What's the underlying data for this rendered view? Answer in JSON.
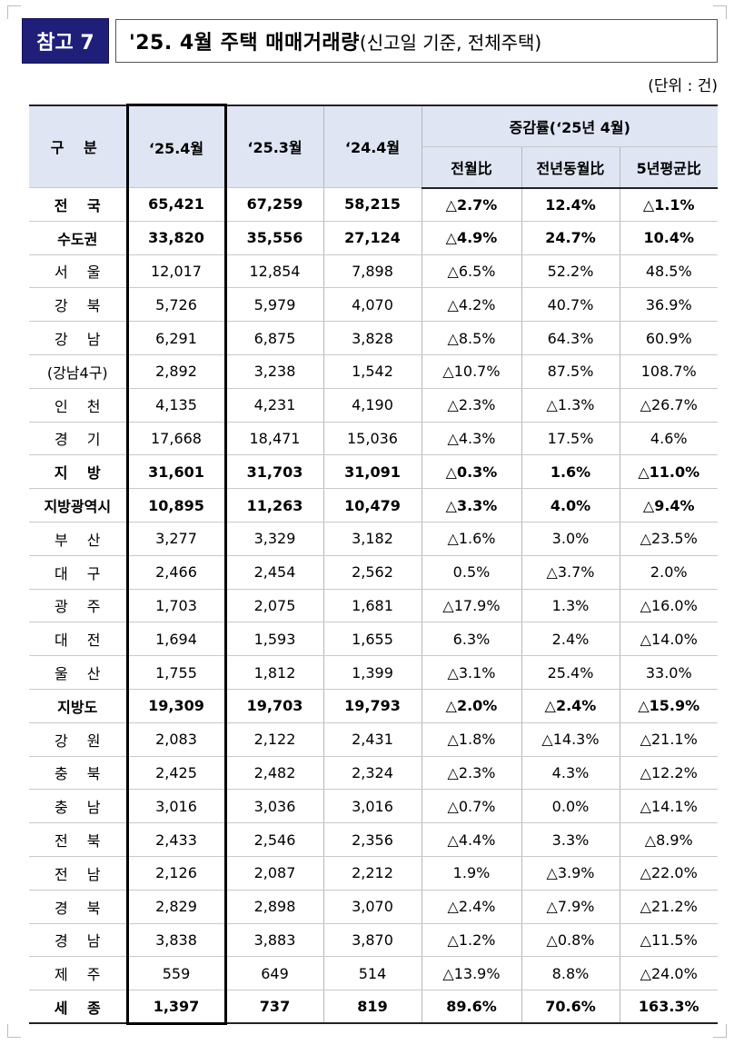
{
  "badge": "참고 7",
  "title": {
    "main": "'25. 4월 주택 매매거래량",
    "sub": "(신고일 기준, 전체주택)"
  },
  "unit": "(단위 : 건)",
  "header": {
    "category": "구 분",
    "col1": "‘25.4월",
    "col2": "‘25.3월",
    "col3": "‘24.4월",
    "change_group": "증감률(‘25년 4월)",
    "mom": "전월比",
    "yoy": "전년동월比",
    "avg5y": "5년평균比"
  },
  "rows": [
    {
      "label": "전 국",
      "v1": "65,421",
      "v2": "67,259",
      "v3": "58,215",
      "mom": "△2.7%",
      "yoy": "12.4%",
      "avg": "△1.1%"
    },
    {
      "label": "수도권",
      "v1": "33,820",
      "v2": "35,556",
      "v3": "27,124",
      "mom": "△4.9%",
      "yoy": "24.7%",
      "avg": "10.4%"
    },
    {
      "label": "서 울",
      "v1": "12,017",
      "v2": "12,854",
      "v3": "7,898",
      "mom": "△6.5%",
      "yoy": "52.2%",
      "avg": "48.5%"
    },
    {
      "label": "강 북",
      "v1": "5,726",
      "v2": "5,979",
      "v3": "4,070",
      "mom": "△4.2%",
      "yoy": "40.7%",
      "avg": "36.9%"
    },
    {
      "label": "강 남",
      "v1": "6,291",
      "v2": "6,875",
      "v3": "3,828",
      "mom": "△8.5%",
      "yoy": "64.3%",
      "avg": "60.9%"
    },
    {
      "label": "(강남4구)",
      "v1": "2,892",
      "v2": "3,238",
      "v3": "1,542",
      "mom": "△10.7%",
      "yoy": "87.5%",
      "avg": "108.7%"
    },
    {
      "label": "인 천",
      "v1": "4,135",
      "v2": "4,231",
      "v3": "4,190",
      "mom": "△2.3%",
      "yoy": "△1.3%",
      "avg": "△26.7%"
    },
    {
      "label": "경 기",
      "v1": "17,668",
      "v2": "18,471",
      "v3": "15,036",
      "mom": "△4.3%",
      "yoy": "17.5%",
      "avg": "4.6%"
    },
    {
      "label": "지 방",
      "v1": "31,601",
      "v2": "31,703",
      "v3": "31,091",
      "mom": "△0.3%",
      "yoy": "1.6%",
      "avg": "△11.0%"
    },
    {
      "label": "지방광역시",
      "v1": "10,895",
      "v2": "11,263",
      "v3": "10,479",
      "mom": "△3.3%",
      "yoy": "4.0%",
      "avg": "△9.4%"
    },
    {
      "label": "부 산",
      "v1": "3,277",
      "v2": "3,329",
      "v3": "3,182",
      "mom": "△1.6%",
      "yoy": "3.0%",
      "avg": "△23.5%"
    },
    {
      "label": "대 구",
      "v1": "2,466",
      "v2": "2,454",
      "v3": "2,562",
      "mom": "0.5%",
      "yoy": "△3.7%",
      "avg": "2.0%"
    },
    {
      "label": "광 주",
      "v1": "1,703",
      "v2": "2,075",
      "v3": "1,681",
      "mom": "△17.9%",
      "yoy": "1.3%",
      "avg": "△16.0%"
    },
    {
      "label": "대 전",
      "v1": "1,694",
      "v2": "1,593",
      "v3": "1,655",
      "mom": "6.3%",
      "yoy": "2.4%",
      "avg": "△14.0%"
    },
    {
      "label": "울 산",
      "v1": "1,755",
      "v2": "1,812",
      "v3": "1,399",
      "mom": "△3.1%",
      "yoy": "25.4%",
      "avg": "33.0%"
    },
    {
      "label": "지방도",
      "v1": "19,309",
      "v2": "19,703",
      "v3": "19,793",
      "mom": "△2.0%",
      "yoy": "△2.4%",
      "avg": "△15.9%"
    },
    {
      "label": "강 원",
      "v1": "2,083",
      "v2": "2,122",
      "v3": "2,431",
      "mom": "△1.8%",
      "yoy": "△14.3%",
      "avg": "△21.1%"
    },
    {
      "label": "충 북",
      "v1": "2,425",
      "v2": "2,482",
      "v3": "2,324",
      "mom": "△2.3%",
      "yoy": "4.3%",
      "avg": "△12.2%"
    },
    {
      "label": "충 남",
      "v1": "3,016",
      "v2": "3,036",
      "v3": "3,016",
      "mom": "△0.7%",
      "yoy": "0.0%",
      "avg": "△14.1%"
    },
    {
      "label": "전 북",
      "v1": "2,433",
      "v2": "2,546",
      "v3": "2,356",
      "mom": "△4.4%",
      "yoy": "3.3%",
      "avg": "△8.9%"
    },
    {
      "label": "전 남",
      "v1": "2,126",
      "v2": "2,087",
      "v3": "2,212",
      "mom": "1.9%",
      "yoy": "△3.9%",
      "avg": "△22.0%"
    },
    {
      "label": "경 북",
      "v1": "2,829",
      "v2": "2,898",
      "v3": "3,070",
      "mom": "△2.4%",
      "yoy": "△7.9%",
      "avg": "△21.2%"
    },
    {
      "label": "경 남",
      "v1": "3,838",
      "v2": "3,883",
      "v3": "3,870",
      "mom": "△1.2%",
      "yoy": "△0.8%",
      "avg": "△11.5%"
    },
    {
      "label": "제 주",
      "v1": "559",
      "v2": "649",
      "v3": "514",
      "mom": "△13.9%",
      "yoy": "8.8%",
      "avg": "△24.0%"
    },
    {
      "label": "세 종",
      "v1": "1,397",
      "v2": "737",
      "v3": "819",
      "mom": "89.6%",
      "yoy": "70.6%",
      "avg": "163.3%"
    }
  ]
}
